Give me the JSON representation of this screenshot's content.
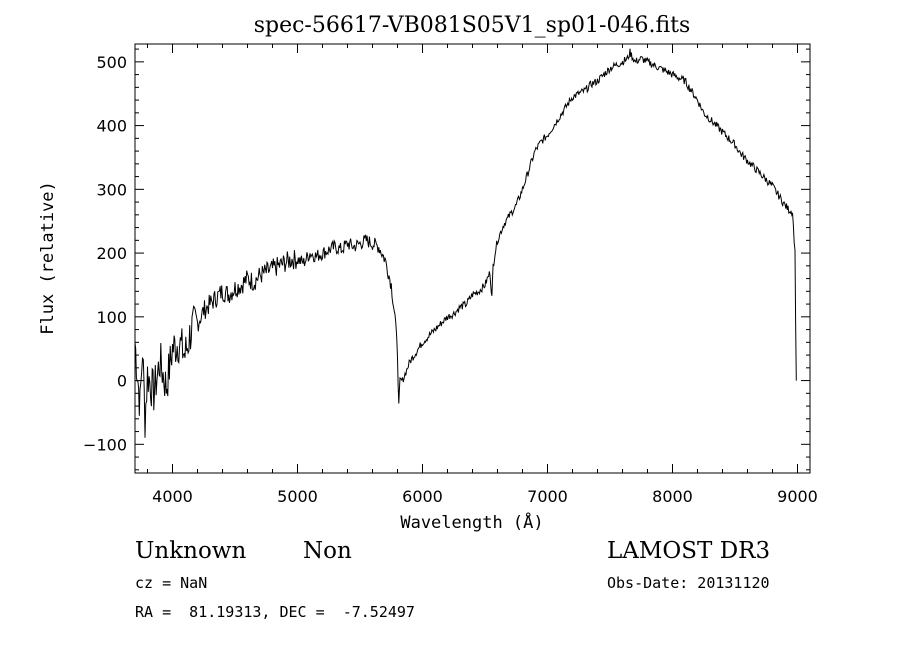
{
  "chart_data": {
    "type": "line",
    "title": "spec-56617-VB081S05V1_sp01-046.fits",
    "xlabel": "Wavelength (Å)",
    "ylabel": "Flux (relative)",
    "xlim": [
      3700,
      9100
    ],
    "ylim": [
      -145,
      528
    ],
    "xticks": [
      4000,
      5000,
      6000,
      7000,
      8000,
      9000
    ],
    "yticks": [
      -100,
      0,
      100,
      200,
      300,
      400,
      500
    ],
    "grid": false,
    "color": "#000000",
    "series": [
      {
        "x": [
          3700,
          3740,
          3760,
          3780,
          3800,
          3850,
          3900,
          3950,
          4000,
          4050,
          4100,
          4150,
          4200,
          4250,
          4300,
          4350,
          4400,
          4450,
          4500,
          4550,
          4600,
          4650,
          4700,
          4750,
          4800,
          4850,
          4900,
          4950,
          5000,
          5050,
          5100,
          5150,
          5200,
          5250,
          5300,
          5350,
          5400,
          5450,
          5500,
          5550,
          5600,
          5650,
          5700,
          5720,
          5750,
          5780,
          5800,
          5810,
          5820,
          5840,
          5860,
          5880,
          5900,
          5950,
          6000,
          6050,
          6100,
          6150,
          6200,
          6250,
          6300,
          6350,
          6400,
          6450,
          6500,
          6540,
          6555,
          6565,
          6580,
          6600,
          6650,
          6700,
          6750,
          6800,
          6850,
          6900,
          6950,
          7000,
          7050,
          7100,
          7150,
          7200,
          7250,
          7300,
          7350,
          7400,
          7450,
          7500,
          7550,
          7600,
          7640,
          7660,
          7700,
          7750,
          7800,
          7850,
          7900,
          7950,
          8000,
          8050,
          8100,
          8150,
          8200,
          8250,
          8300,
          8350,
          8400,
          8450,
          8500,
          8550,
          8600,
          8650,
          8700,
          8750,
          8800,
          8850,
          8900,
          8930,
          8960,
          8980,
          8990
        ],
        "y": [
          60,
          -40,
          50,
          -60,
          10,
          -20,
          30,
          -10,
          50,
          60,
          40,
          80,
          90,
          110,
          120,
          130,
          140,
          135,
          145,
          150,
          160,
          155,
          165,
          170,
          175,
          180,
          185,
          190,
          190,
          185,
          200,
          195,
          200,
          205,
          210,
          205,
          215,
          210,
          215,
          220,
          215,
          210,
          190,
          175,
          150,
          100,
          40,
          -40,
          0,
          0,
          10,
          20,
          30,
          45,
          60,
          70,
          80,
          90,
          100,
          105,
          115,
          120,
          135,
          140,
          150,
          170,
          130,
          180,
          200,
          220,
          245,
          260,
          275,
          300,
          330,
          360,
          375,
          385,
          400,
          415,
          430,
          445,
          450,
          455,
          465,
          470,
          480,
          490,
          495,
          500,
          505,
          515,
          500,
          505,
          500,
          495,
          490,
          485,
          480,
          475,
          470,
          455,
          440,
          420,
          410,
          400,
          390,
          380,
          370,
          355,
          345,
          335,
          325,
          315,
          305,
          290,
          275,
          268,
          265,
          200,
          0
        ]
      }
    ]
  },
  "footer": {
    "object_class": "Unknown",
    "object_subclass": "Non",
    "survey": "LAMOST DR3",
    "cz": "cz = NaN",
    "obs_date": "Obs-Date: 20131120",
    "radec": "RA =  81.19313, DEC =  -7.52497"
  }
}
